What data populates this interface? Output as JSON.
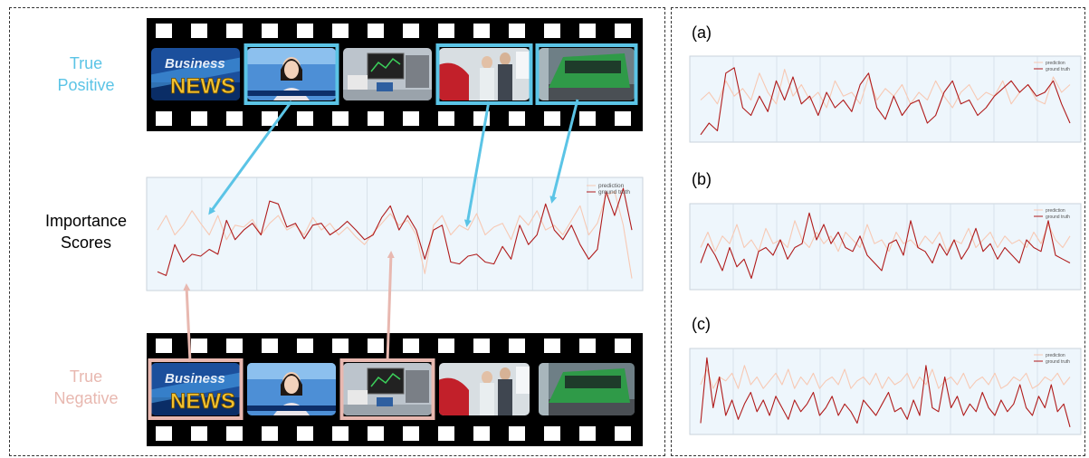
{
  "left": {
    "true_positive_label": [
      "True",
      "Positive"
    ],
    "importance_label": [
      "Importance",
      "Scores"
    ],
    "true_negative_label": [
      "True",
      "Negative"
    ],
    "news_text_top": "Business",
    "news_text_bottom": "NEWS"
  },
  "right": {
    "sub_labels": [
      "(a)",
      "(b)",
      "(c)"
    ]
  },
  "legend": {
    "prediction": "prediction",
    "ground_truth": "ground truth"
  },
  "colors": {
    "true_positive": "#5bc4e6",
    "true_negative": "#e8b8b0",
    "prediction_line": "#f7c9b4",
    "ground_truth_line": "#b01b1b",
    "plot_bg": "#eef6fc"
  },
  "chart_data": [
    {
      "type": "line",
      "id": "main",
      "legend_position": "top-right",
      "series": [
        {
          "name": "prediction",
          "values": [
            0.55,
            0.7,
            0.5,
            0.6,
            0.75,
            0.62,
            0.5,
            0.7,
            0.45,
            0.6,
            0.58,
            0.66,
            0.5,
            0.62,
            0.7,
            0.55,
            0.6,
            0.5,
            0.68,
            0.55,
            0.62,
            0.5,
            0.58,
            0.48,
            0.4,
            0.52,
            0.62,
            0.72,
            0.6,
            0.65,
            0.5,
            0.1,
            0.6,
            0.7,
            0.5,
            0.6,
            0.55,
            0.72,
            0.5,
            0.58,
            0.62,
            0.45,
            0.7,
            0.6,
            0.75,
            0.55,
            0.6,
            0.5,
            0.65,
            0.8,
            0.5,
            0.62,
            0.9,
            0.95,
            0.6,
            0.05
          ]
        },
        {
          "name": "ground truth",
          "values": [
            0.12,
            0.08,
            0.4,
            0.22,
            0.3,
            0.28,
            0.35,
            0.3,
            0.65,
            0.45,
            0.55,
            0.62,
            0.5,
            0.85,
            0.82,
            0.58,
            0.62,
            0.46,
            0.6,
            0.62,
            0.5,
            0.56,
            0.64,
            0.55,
            0.45,
            0.5,
            0.68,
            0.8,
            0.55,
            0.7,
            0.55,
            0.25,
            0.55,
            0.6,
            0.22,
            0.2,
            0.28,
            0.3,
            0.22,
            0.2,
            0.38,
            0.25,
            0.6,
            0.4,
            0.5,
            0.82,
            0.55,
            0.45,
            0.6,
            0.4,
            0.25,
            0.35,
            0.95,
            0.7,
            0.98,
            0.55
          ]
        }
      ]
    },
    {
      "type": "line",
      "id": "a",
      "legend_position": "top-right",
      "series": [
        {
          "name": "prediction",
          "values": [
            0.5,
            0.6,
            0.45,
            0.75,
            0.55,
            0.65,
            0.5,
            0.85,
            0.6,
            0.45,
            0.9,
            0.55,
            0.7,
            0.5,
            0.6,
            0.4,
            0.75,
            0.55,
            0.6,
            0.45,
            0.8,
            0.5,
            0.65,
            0.55,
            0.7,
            0.45,
            0.6,
            0.5,
            0.75,
            0.55,
            0.4,
            0.6,
            0.7,
            0.5,
            0.6,
            0.55,
            0.75,
            0.45,
            0.6,
            0.7,
            0.5,
            0.45,
            0.8,
            0.6,
            0.7
          ]
        },
        {
          "name": "ground truth",
          "values": [
            0.05,
            0.2,
            0.1,
            0.85,
            0.92,
            0.4,
            0.3,
            0.55,
            0.35,
            0.75,
            0.5,
            0.8,
            0.45,
            0.55,
            0.3,
            0.6,
            0.4,
            0.5,
            0.35,
            0.7,
            0.85,
            0.4,
            0.25,
            0.55,
            0.3,
            0.45,
            0.5,
            0.2,
            0.3,
            0.6,
            0.75,
            0.45,
            0.5,
            0.3,
            0.4,
            0.55,
            0.65,
            0.75,
            0.6,
            0.7,
            0.55,
            0.6,
            0.75,
            0.45,
            0.2
          ]
        }
      ]
    },
    {
      "type": "line",
      "id": "b",
      "legend_position": "top-right",
      "series": [
        {
          "name": "prediction",
          "values": [
            0.5,
            0.7,
            0.45,
            0.65,
            0.55,
            0.8,
            0.5,
            0.6,
            0.45,
            0.75,
            0.55,
            0.6,
            0.5,
            0.85,
            0.6,
            0.5,
            0.7,
            0.55,
            0.65,
            0.45,
            0.7,
            0.6,
            0.5,
            0.8,
            0.55,
            0.6,
            0.45,
            0.7,
            0.55,
            0.6,
            0.5,
            0.65,
            0.55,
            0.7,
            0.45,
            0.6,
            0.55,
            0.75,
            0.5,
            0.6,
            0.7,
            0.5,
            0.65,
            0.55,
            0.6,
            0.5,
            0.7,
            0.55,
            0.8,
            0.6,
            0.5,
            0.65
          ]
        },
        {
          "name": "ground truth",
          "values": [
            0.3,
            0.55,
            0.4,
            0.2,
            0.5,
            0.25,
            0.35,
            0.1,
            0.45,
            0.5,
            0.4,
            0.6,
            0.35,
            0.5,
            0.55,
            0.95,
            0.6,
            0.8,
            0.55,
            0.7,
            0.5,
            0.45,
            0.65,
            0.4,
            0.3,
            0.2,
            0.55,
            0.6,
            0.4,
            0.85,
            0.5,
            0.45,
            0.3,
            0.55,
            0.4,
            0.6,
            0.35,
            0.5,
            0.75,
            0.45,
            0.55,
            0.35,
            0.5,
            0.4,
            0.3,
            0.6,
            0.5,
            0.45,
            0.85,
            0.4,
            0.35,
            0.3
          ]
        }
      ]
    },
    {
      "type": "line",
      "id": "c",
      "legend_position": "top-right",
      "series": [
        {
          "name": "prediction",
          "values": [
            0.6,
            0.8,
            0.55,
            0.7,
            0.65,
            0.75,
            0.55,
            0.85,
            0.6,
            0.7,
            0.55,
            0.65,
            0.75,
            0.6,
            0.8,
            0.55,
            0.7,
            0.6,
            0.75,
            0.55,
            0.65,
            0.7,
            0.6,
            0.8,
            0.55,
            0.65,
            0.7,
            0.6,
            0.75,
            0.55,
            0.7,
            0.6,
            0.65,
            0.75,
            0.55,
            0.7,
            0.6,
            0.8,
            0.55,
            0.65,
            0.7,
            0.6,
            0.75,
            0.55,
            0.65,
            0.7,
            0.6,
            0.75,
            0.55,
            0.6,
            0.7,
            0.65,
            0.75,
            0.55,
            0.6,
            0.7,
            0.65,
            0.75,
            0.6,
            0.7
          ]
        },
        {
          "name": "ground truth",
          "values": [
            0.1,
            0.95,
            0.3,
            0.7,
            0.2,
            0.4,
            0.15,
            0.35,
            0.5,
            0.25,
            0.4,
            0.2,
            0.45,
            0.3,
            0.15,
            0.4,
            0.25,
            0.35,
            0.5,
            0.2,
            0.3,
            0.45,
            0.2,
            0.35,
            0.25,
            0.1,
            0.4,
            0.3,
            0.2,
            0.35,
            0.5,
            0.25,
            0.3,
            0.15,
            0.4,
            0.2,
            0.85,
            0.3,
            0.25,
            0.7,
            0.3,
            0.45,
            0.2,
            0.35,
            0.25,
            0.5,
            0.3,
            0.2,
            0.4,
            0.25,
            0.35,
            0.6,
            0.3,
            0.2,
            0.45,
            0.3,
            0.6,
            0.25,
            0.35,
            0.05
          ]
        }
      ]
    }
  ]
}
